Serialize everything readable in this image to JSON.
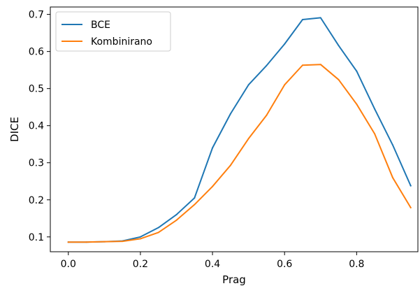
{
  "chart_data": {
    "type": "line",
    "title": "",
    "xlabel": "Prag",
    "ylabel": "DICE",
    "xlim": [
      -0.05,
      0.97
    ],
    "ylim": [
      0.06,
      0.72
    ],
    "xticks": [
      0.0,
      0.2,
      0.4,
      0.6,
      0.8
    ],
    "xtick_labels": [
      "0.0",
      "0.2",
      "0.4",
      "0.6",
      "0.8"
    ],
    "yticks": [
      0.1,
      0.2,
      0.3,
      0.4,
      0.5,
      0.6,
      0.7
    ],
    "ytick_labels": [
      "0.1",
      "0.2",
      "0.3",
      "0.4",
      "0.5",
      "0.6",
      "0.7"
    ],
    "grid": false,
    "legend_position": "top-left",
    "x": [
      0.0,
      0.05,
      0.1,
      0.15,
      0.2,
      0.25,
      0.3,
      0.35,
      0.4,
      0.45,
      0.5,
      0.55,
      0.6,
      0.65,
      0.7,
      0.75,
      0.8,
      0.85,
      0.9,
      0.95
    ],
    "series": [
      {
        "name": "BCE",
        "color": "#1f77b4",
        "values": [
          0.086,
          0.086,
          0.087,
          0.089,
          0.1,
          0.125,
          0.16,
          0.205,
          0.34,
          0.432,
          0.51,
          0.562,
          0.62,
          0.686,
          0.691,
          0.616,
          0.547,
          0.445,
          0.348,
          0.238
        ]
      },
      {
        "name": "Kombinirano",
        "color": "#ff7f0e",
        "values": [
          0.086,
          0.086,
          0.087,
          0.088,
          0.095,
          0.112,
          0.145,
          0.187,
          0.236,
          0.293,
          0.365,
          0.428,
          0.51,
          0.563,
          0.565,
          0.524,
          0.458,
          0.378,
          0.26,
          0.179
        ]
      }
    ]
  }
}
